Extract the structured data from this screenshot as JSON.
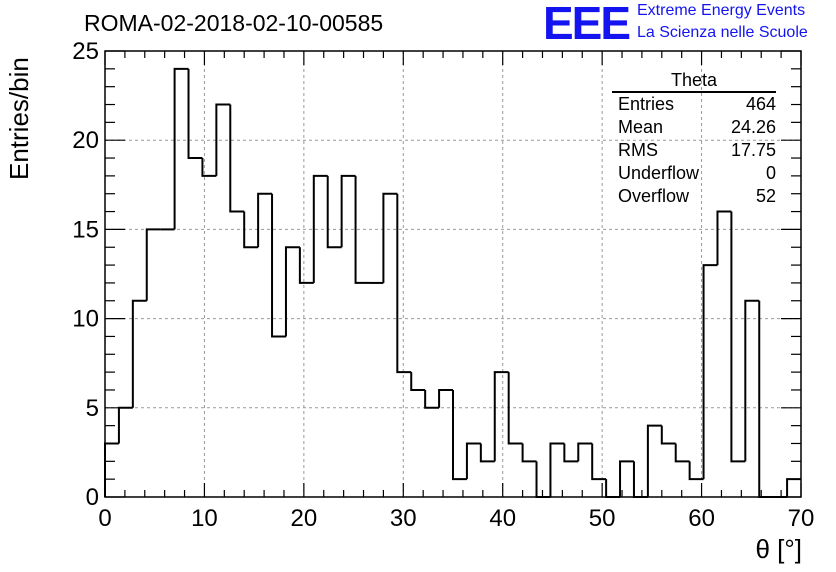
{
  "title": "ROMA-02-2018-02-10-00585",
  "logo": {
    "mark": "EEE",
    "line1": "Extreme Energy Events",
    "line2": "La Scienza nelle Scuole",
    "color": "#1414f0"
  },
  "stats": {
    "title": "Theta",
    "rows": [
      {
        "label": "Entries",
        "value": "464"
      },
      {
        "label": "Mean",
        "value": "24.26"
      },
      {
        "label": "RMS",
        "value": "17.75"
      },
      {
        "label": "Underflow",
        "value": "0"
      },
      {
        "label": "Overflow",
        "value": "52"
      }
    ]
  },
  "chart_data": {
    "type": "bar",
    "style": "step-histogram",
    "ylabel": "Entries/bin",
    "xlabel": "θ [°]",
    "xlim": [
      0,
      70
    ],
    "ylim": [
      0,
      25
    ],
    "bin_width": 1.4,
    "x_ticks": [
      0,
      10,
      20,
      30,
      40,
      50,
      60,
      70
    ],
    "y_ticks": [
      0,
      5,
      10,
      15,
      20,
      25
    ],
    "grid": true,
    "values": [
      3,
      5,
      11,
      15,
      15,
      24,
      19,
      18,
      22,
      16,
      14,
      17,
      9,
      14,
      12,
      18,
      14,
      18,
      12,
      12,
      17,
      7,
      6,
      5,
      6,
      1,
      3,
      2,
      7,
      3,
      2,
      0,
      3,
      2,
      3,
      1,
      0,
      2,
      0,
      4,
      3,
      2,
      1,
      13,
      16,
      2,
      11,
      0,
      0,
      1
    ]
  }
}
